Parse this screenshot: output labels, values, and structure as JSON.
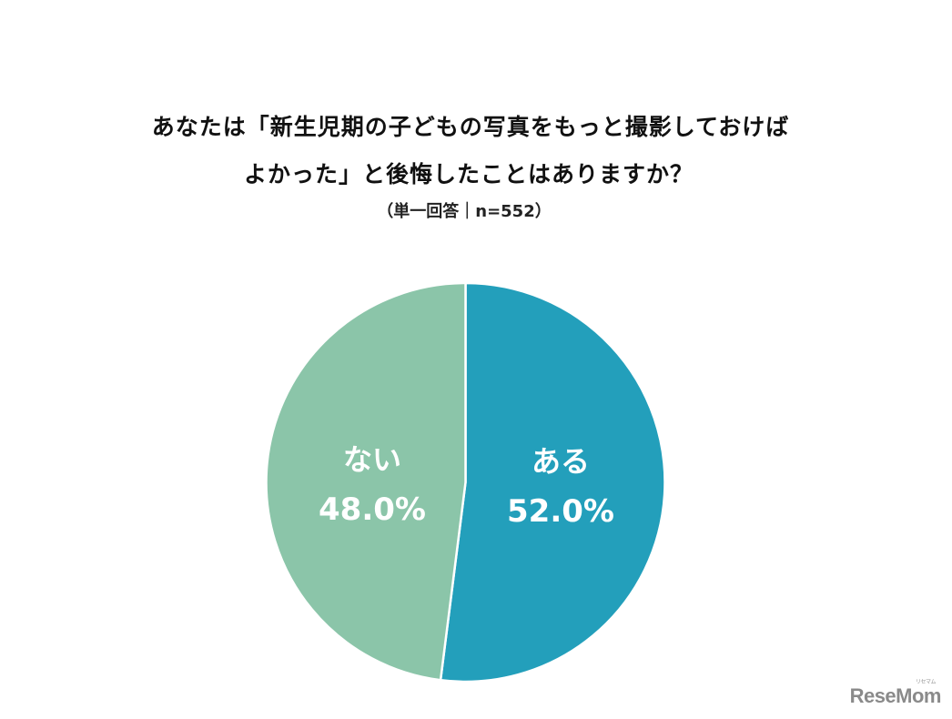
{
  "header": {
    "title_line1": "あなたは「新生児期の子どもの写真をもっと撮影しておけば",
    "title_line2": "よかった」と後悔したことはありますか？",
    "subtitle": "（単一回答｜n=552）"
  },
  "colors": {
    "aru": "#239FBB",
    "nai": "#8BC5A9",
    "separator": "#ffffff"
  },
  "slices": [
    {
      "label": "ある",
      "value_label": "52.0%"
    },
    {
      "label": "ない",
      "value_label": "48.0%"
    }
  ],
  "logo": {
    "text": "ReseMom",
    "ruby": "リセマム"
  },
  "chart_data": {
    "type": "pie",
    "title": "あなたは「新生児期の子どもの写真をもっと撮影しておけばよかった」と後悔したことはありますか？",
    "subtitle": "（単一回答｜n=552）",
    "categories": [
      "ある",
      "ない"
    ],
    "values": [
      52.0,
      48.0
    ],
    "unit": "%",
    "n": 552,
    "start_angle": "12 o'clock, clockwise",
    "legend": "none (labels inside slices)"
  }
}
